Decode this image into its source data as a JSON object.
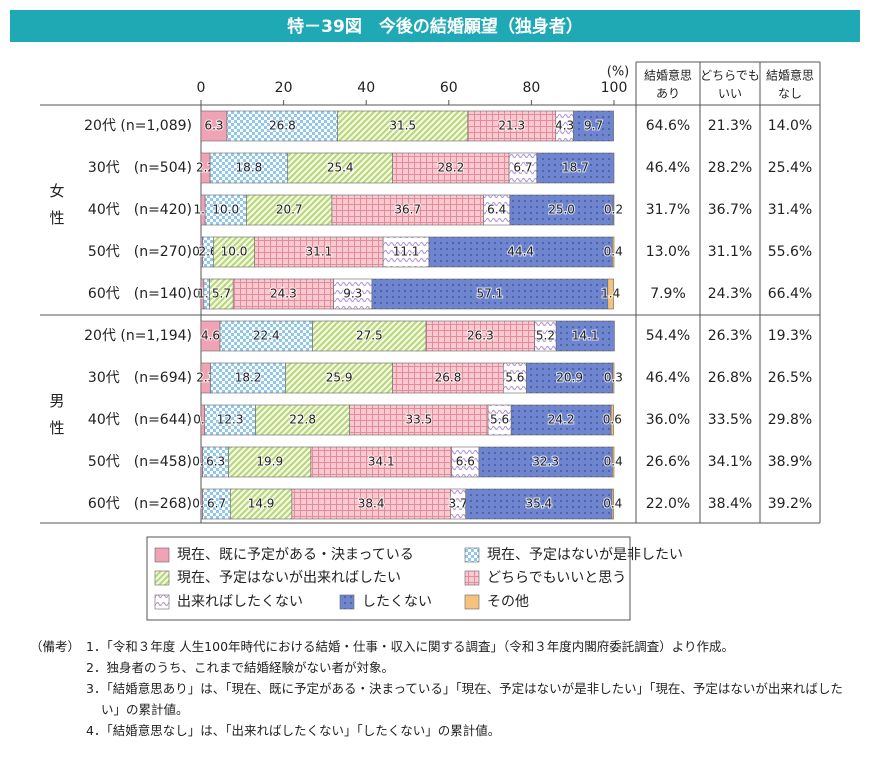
{
  "chart_data": {
    "type": "stacked-bar-horizontal",
    "title": "特－39図　今後の結婚願望（独身者）",
    "x_unit": "(%)",
    "xlim": [
      0,
      100
    ],
    "xticks": [
      0,
      20,
      40,
      60,
      80,
      100
    ],
    "groups": [
      {
        "label": "女性",
        "start": 0,
        "end": 4
      },
      {
        "label": "男性",
        "start": 5,
        "end": 9
      }
    ],
    "categories": [
      "20代 (n=1,089)",
      "30代　(n=504)",
      "40代　(n=420)",
      "50代　(n=270)",
      "60代　(n=140)",
      "20代 (n=1,194)",
      "30代　(n=694)",
      "40代　(n=644)",
      "50代　(n=458)",
      "60代　(n=268)"
    ],
    "series": [
      {
        "name": "現在、既に予定がある・決まっている",
        "color": "#f0a3b5",
        "pattern": "solid",
        "values": [
          6.3,
          2.2,
          1.0,
          0.4,
          0.7,
          4.6,
          2.3,
          0.9,
          0.4,
          0.4
        ],
        "value_labels": [
          "6.3",
          "2.2",
          "1.0",
          "0.4",
          "0.7",
          "4.6",
          "2.3",
          "0.9",
          "0.4",
          "0.4"
        ]
      },
      {
        "name": "現在、予定はないが是非したい",
        "color": "#8fc8ea",
        "pattern": "checker",
        "values": [
          26.8,
          18.8,
          10.0,
          2.6,
          1.4,
          22.4,
          18.2,
          12.3,
          6.3,
          6.7
        ],
        "value_labels": [
          "26.8",
          "18.8",
          "10.0",
          "2.6",
          "1.4",
          "22.4",
          "18.2",
          "12.3",
          "6.3",
          "6.7"
        ]
      },
      {
        "name": "現在、予定はないが出来ればしたい",
        "color": "#b8d676",
        "pattern": "diagonal",
        "values": [
          31.5,
          25.4,
          20.7,
          10.0,
          5.7,
          27.5,
          25.9,
          22.8,
          19.9,
          14.9
        ],
        "value_labels": [
          "31.5",
          "25.4",
          "20.7",
          "10.0",
          "5.7",
          "27.5",
          "25.9",
          "22.8",
          "19.9",
          "14.9"
        ]
      },
      {
        "name": "どちらでもいいと思う",
        "color": "#e98a9a",
        "pattern": "grid",
        "values": [
          21.3,
          28.2,
          36.7,
          31.1,
          24.3,
          26.3,
          26.8,
          33.5,
          34.1,
          38.4
        ],
        "value_labels": [
          "21.3",
          "28.2",
          "36.7",
          "31.1",
          "24.3",
          "26.3",
          "26.8",
          "33.5",
          "34.1",
          "38.4"
        ]
      },
      {
        "name": "出来ればしたくない",
        "color": "#b99ad6",
        "pattern": "wave",
        "values": [
          4.3,
          6.7,
          6.4,
          11.1,
          9.3,
          5.2,
          5.6,
          5.6,
          6.6,
          3.7
        ],
        "value_labels": [
          "4.3",
          "6.7",
          "6.4",
          "11.1",
          "9.3",
          "5.2",
          "5.6",
          "5.6",
          "6.6",
          "3.7"
        ]
      },
      {
        "name": "したくない",
        "color": "#6f86cf",
        "pattern": "dots",
        "values": [
          9.7,
          18.7,
          25.0,
          44.4,
          57.1,
          14.1,
          20.9,
          24.2,
          32.3,
          35.4
        ],
        "value_labels": [
          "9.7",
          "18.7",
          "25.0",
          "44.4",
          "57.1",
          "14.1",
          "20.9",
          "24.2",
          "32.3",
          "35.4"
        ]
      },
      {
        "name": "その他",
        "color": "#f5c27e",
        "pattern": "solid",
        "values": [
          null,
          null,
          0.2,
          0.4,
          1.4,
          null,
          0.3,
          0.6,
          0.4,
          0.4
        ],
        "value_labels": [
          null,
          null,
          "0.2",
          "0.4",
          "1.4",
          null,
          "0.3",
          "0.6",
          "0.4",
          "0.4"
        ]
      }
    ],
    "table": {
      "headers": [
        [
          "結婚意思",
          "あり"
        ],
        [
          "どちらでも",
          "いい"
        ],
        [
          "結婚意思",
          "なし"
        ]
      ],
      "rows": [
        [
          "64.6%",
          "21.3%",
          "14.0%"
        ],
        [
          "46.4%",
          "28.2%",
          "25.4%"
        ],
        [
          "31.7%",
          "36.7%",
          "31.4%"
        ],
        [
          "13.0%",
          "31.1%",
          "55.6%"
        ],
        [
          "7.9%",
          "24.3%",
          "66.4%"
        ],
        [
          "54.4%",
          "26.3%",
          "19.3%"
        ],
        [
          "46.4%",
          "26.8%",
          "26.5%"
        ],
        [
          "36.0%",
          "33.5%",
          "29.8%"
        ],
        [
          "26.6%",
          "34.1%",
          "38.9%"
        ],
        [
          "22.0%",
          "38.4%",
          "39.2%"
        ]
      ]
    },
    "notes_label": "（備考）",
    "notes": [
      "1．「令和３年度 人生100年時代における結婚・仕事・収入に関する調査」（令和３年度内閣府委託調査）より作成。",
      "2．独身者のうち、これまで結婚経験がない者が対象。",
      "3．「結婚意思あり」は、「現在、既に予定がある・決まっている」「現在、予定はないが是非したい」「現在、予定はないが出来ればしたい」の累計値。",
      "4．「結婚意思なし」は、「出来ればしたくない」「したくない」の累計値。"
    ]
  }
}
